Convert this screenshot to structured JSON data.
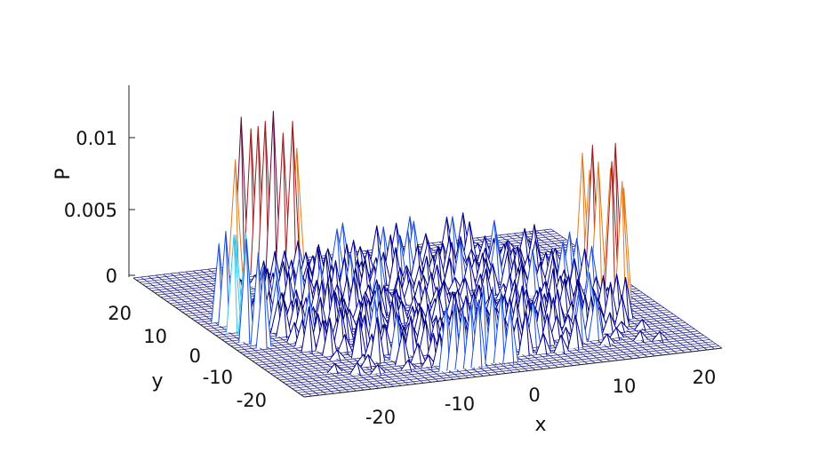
{
  "chart_data": {
    "type": "surface",
    "title": "",
    "xlabel": "x",
    "ylabel": "y",
    "zlabel": "P",
    "xlim": [
      -30,
      26
    ],
    "ylim": [
      -26,
      26
    ],
    "zlim": [
      0,
      0.013
    ],
    "x_ticks": [
      "-20",
      "-10",
      "0",
      "10",
      "20"
    ],
    "y_ticks": [
      "20",
      "10",
      "0",
      "-10",
      "-20"
    ],
    "z_ticks": [
      "0",
      "0.005",
      "0.01"
    ],
    "grid": false,
    "colormap": [
      "#00008c",
      "#1e4fd6",
      "#36c6e6",
      "#e07a1e",
      "#a01a1a",
      "#5a0a3a"
    ],
    "peak_clusters": [
      {
        "x": -27,
        "y": 0,
        "height": 0.0085
      },
      {
        "x": -14,
        "y": 22,
        "height": 0.0128
      },
      {
        "x": -5,
        "y": -22,
        "height": 0.0058
      },
      {
        "x": 22,
        "y": 0,
        "height": 0.0112
      }
    ],
    "background_height": 0.0035
  }
}
